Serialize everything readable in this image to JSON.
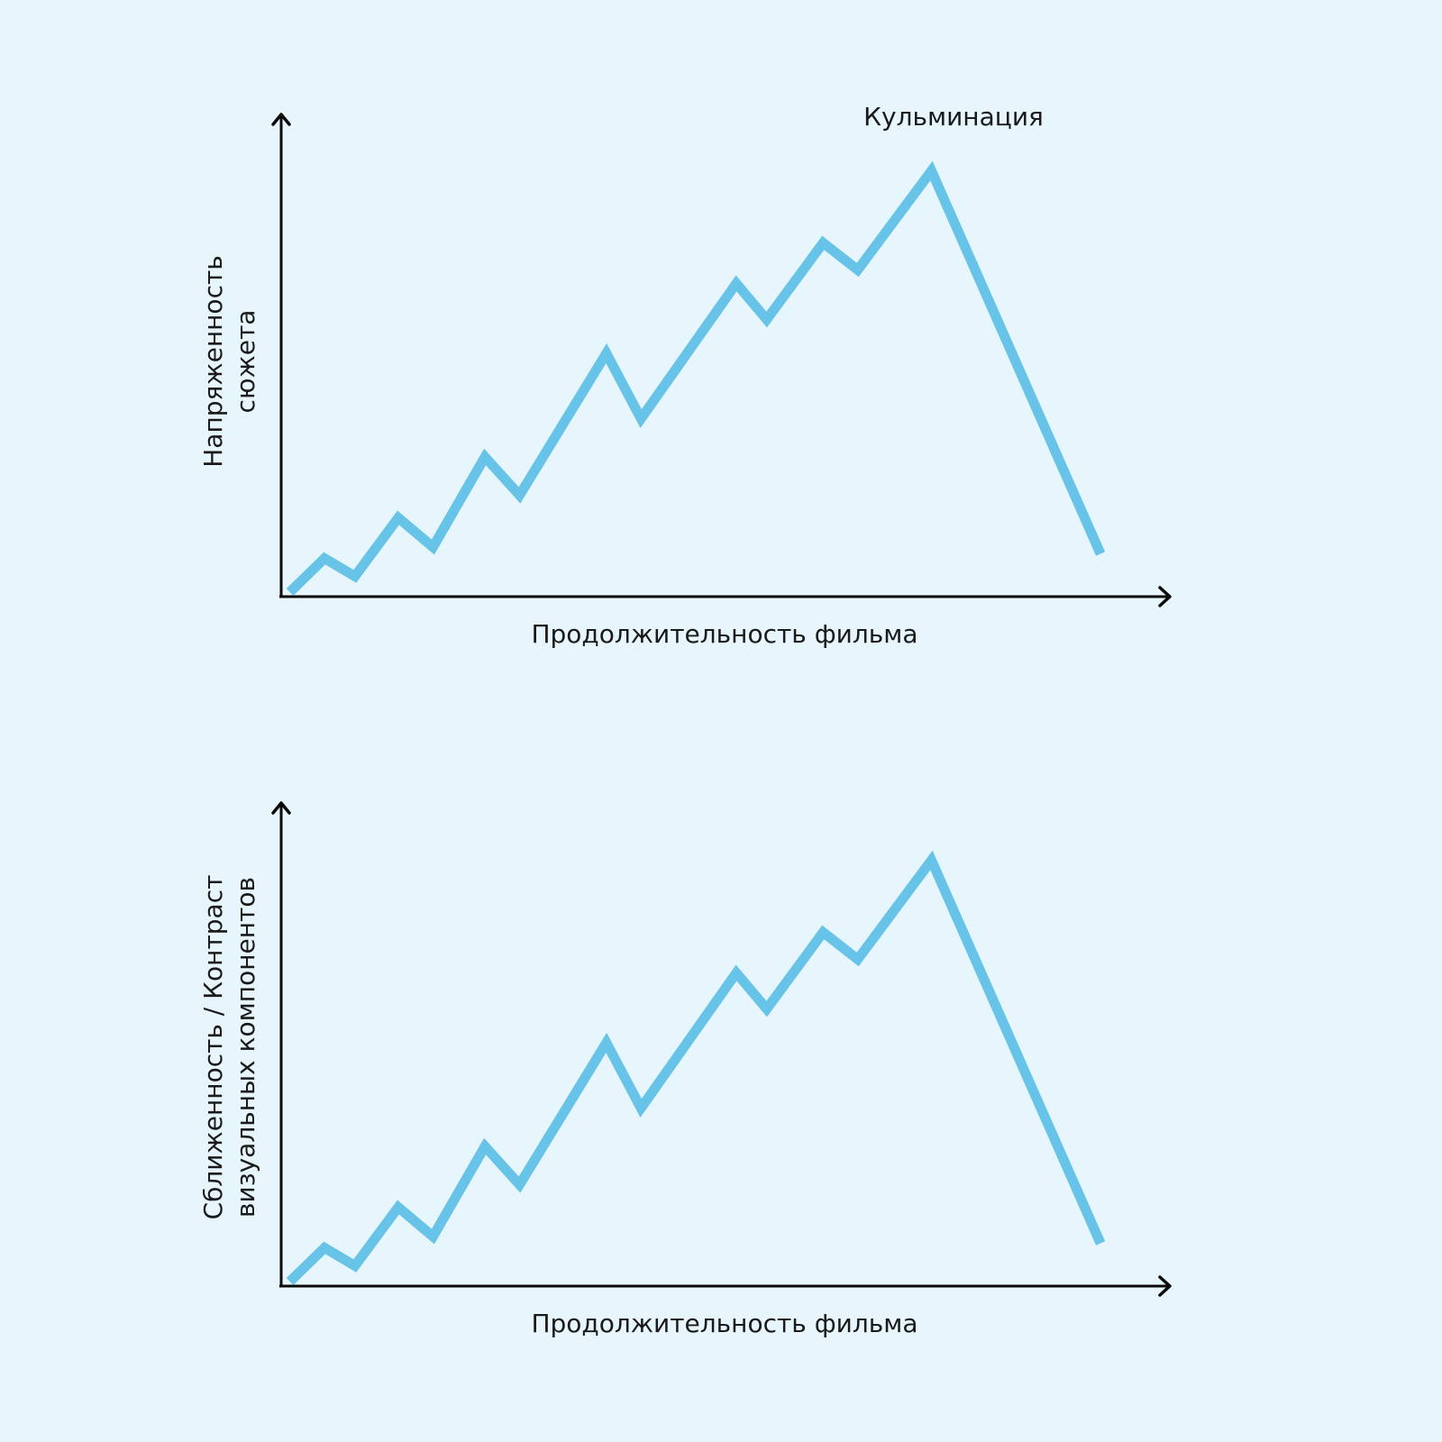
{
  "colors": {
    "background": "#e7f6fc",
    "series": "#67c3e8",
    "axis": "#0a0a0a",
    "text": "#1a1a1a"
  },
  "chart_data": [
    {
      "type": "line",
      "title": "",
      "xlabel": "Продолжительность фильма",
      "ylabel": [
        "Напряженность",
        "сюжета"
      ],
      "xlim": [
        0,
        1
      ],
      "ylim": [
        0,
        1
      ],
      "grid": false,
      "axis_ticks": false,
      "x": [
        0.01,
        0.05,
        0.085,
        0.135,
        0.175,
        0.235,
        0.275,
        0.375,
        0.415,
        0.525,
        0.56,
        0.625,
        0.665,
        0.75,
        0.945
      ],
      "values": [
        0.01,
        0.085,
        0.045,
        0.175,
        0.11,
        0.31,
        0.225,
        0.54,
        0.395,
        0.695,
        0.615,
        0.785,
        0.725,
        0.945,
        0.095
      ],
      "annotations": [
        {
          "text": "Кульминация",
          "x": 0.75,
          "y": 0.945
        }
      ]
    },
    {
      "type": "line",
      "title": "",
      "xlabel": "Продолжительность фильма",
      "ylabel": [
        "Сближенность / Контраст",
        "визуальных компонентов"
      ],
      "xlim": [
        0,
        1
      ],
      "ylim": [
        0,
        1
      ],
      "grid": false,
      "axis_ticks": false,
      "x": [
        0.01,
        0.05,
        0.085,
        0.135,
        0.175,
        0.235,
        0.275,
        0.375,
        0.415,
        0.525,
        0.56,
        0.625,
        0.665,
        0.75,
        0.945
      ],
      "values": [
        0.01,
        0.085,
        0.045,
        0.175,
        0.11,
        0.31,
        0.225,
        0.54,
        0.395,
        0.695,
        0.615,
        0.785,
        0.725,
        0.945,
        0.095
      ],
      "annotations": []
    }
  ]
}
